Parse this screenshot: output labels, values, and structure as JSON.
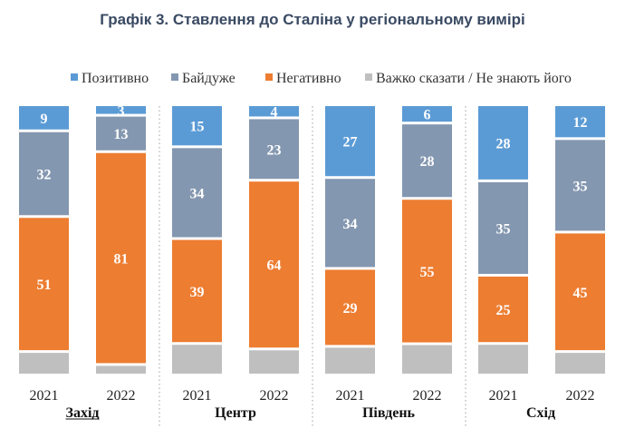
{
  "chart_data": {
    "type": "bar",
    "stacked": true,
    "percent": true,
    "title": "Графік 3. Ставлення до Сталіна у регіональному вимірі",
    "legend": [
      "Позитивно",
      "Байдуже",
      "Негативно",
      "Важко сказати / Не знають його"
    ],
    "legend_position": "top-right",
    "colors": {
      "positive": "#5b9bd5",
      "neutral": "#8497b0",
      "negative": "#ed7d31",
      "unsure": "#bfbfbf",
      "divider": "#b0b0b0"
    },
    "groups": [
      {
        "region": "Захід",
        "underline": true,
        "bars": [
          {
            "year": "2021",
            "values": [
              9,
              32,
              51,
              8
            ]
          },
          {
            "year": "2022",
            "values": [
              3,
              13,
              81,
              3
            ]
          }
        ]
      },
      {
        "region": "Центр",
        "underline": false,
        "bars": [
          {
            "year": "2021",
            "values": [
              15,
              34,
              39,
              11
            ]
          },
          {
            "year": "2022",
            "values": [
              4,
              23,
              64,
              9
            ]
          }
        ]
      },
      {
        "region": "Південь",
        "underline": false,
        "bars": [
          {
            "year": "2021",
            "values": [
              27,
              34,
              29,
              10
            ]
          },
          {
            "year": "2022",
            "values": [
              6,
              28,
              55,
              11
            ]
          }
        ]
      },
      {
        "region": "Схід",
        "underline": false,
        "bars": [
          {
            "year": "2021",
            "values": [
              28,
              35,
              25,
              11
            ]
          },
          {
            "year": "2022",
            "values": [
              12,
              35,
              45,
              8
            ]
          }
        ]
      }
    ],
    "value_labels": [
      [
        "9",
        "32",
        "51"
      ],
      [
        "3",
        "13",
        "81"
      ],
      [
        "15",
        "34",
        "39"
      ],
      [
        "4",
        "23",
        "64"
      ],
      [
        "27",
        "34",
        "29"
      ],
      [
        "6",
        "28",
        "55"
      ],
      [
        "28",
        "35",
        "25"
      ],
      [
        "12",
        "35",
        "45"
      ]
    ]
  }
}
